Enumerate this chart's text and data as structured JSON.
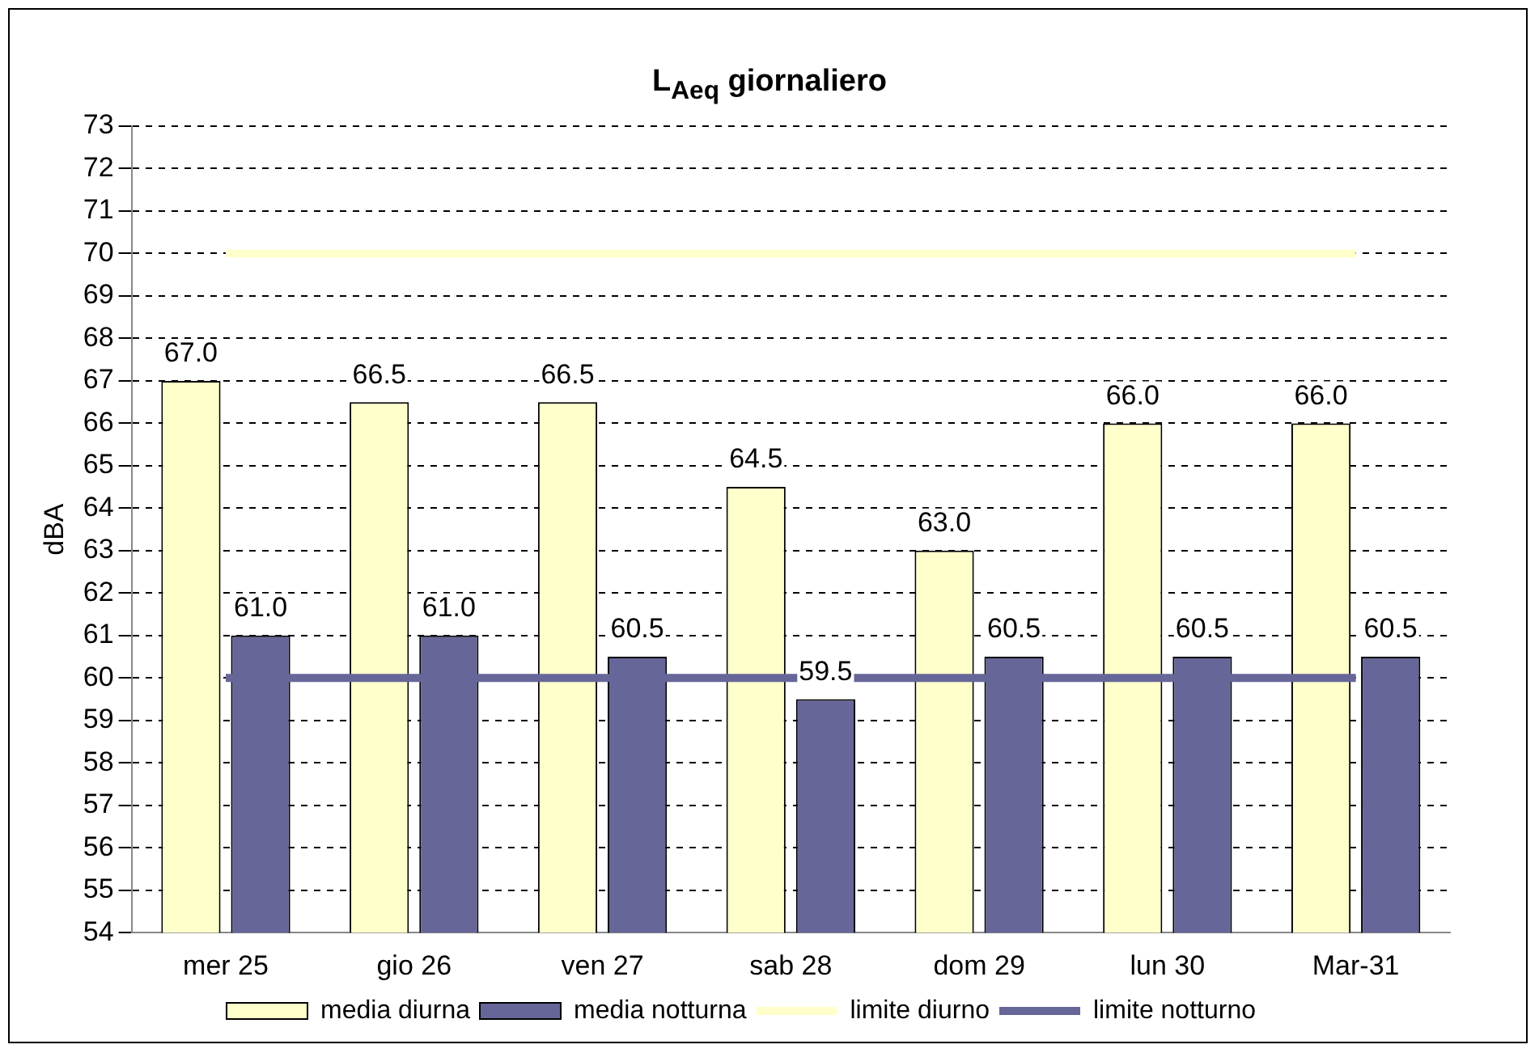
{
  "chart_data": {
    "type": "bar",
    "title": "L$_{Aeq}$ giornaliero",
    "ylabel": "dBA",
    "categories": [
      "mer 25",
      "gio 26",
      "ven 27",
      "sab 28",
      "dom 29",
      "lun 30",
      "Mar-31"
    ],
    "series": [
      {
        "name": "media diurna",
        "color": "#ffffcc",
        "values": [
          67.0,
          66.5,
          66.5,
          64.5,
          63.0,
          66.0,
          66.0
        ],
        "value_labels": [
          "67.0",
          "66.5",
          "66.5",
          "64.5",
          "63.0",
          "66.0",
          "66.0"
        ]
      },
      {
        "name": "media notturna",
        "color": "#666699",
        "values": [
          61.0,
          61.0,
          60.5,
          59.5,
          60.5,
          60.5,
          60.5
        ],
        "value_labels": [
          "61.0",
          "61.0",
          "60.5",
          "59.5",
          "60.5",
          "60.5",
          "60.5"
        ]
      },
      {
        "name": "limite diurno",
        "type": "line",
        "color": "#ffffcc",
        "values": [
          70,
          70,
          70,
          70,
          70,
          70,
          70
        ]
      },
      {
        "name": "limite notturno",
        "type": "line",
        "color": "#666699",
        "values": [
          60,
          60,
          60,
          60,
          60,
          60,
          60
        ]
      }
    ],
    "ylim": [
      54,
      73
    ],
    "yticks": [
      54,
      55,
      56,
      57,
      58,
      59,
      60,
      61,
      62,
      63,
      64,
      65,
      66,
      67,
      68,
      69,
      70,
      71,
      72,
      73
    ],
    "grid": "y",
    "marker": "none",
    "legend": "bottom"
  }
}
